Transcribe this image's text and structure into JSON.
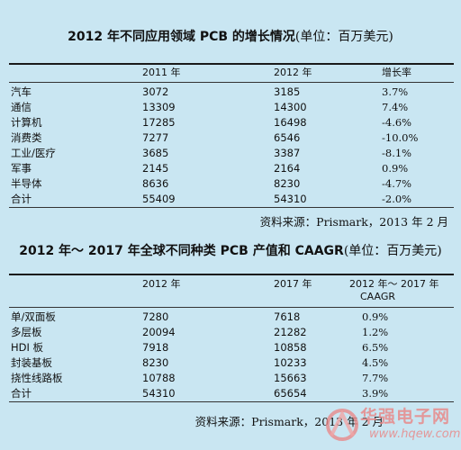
{
  "table1": {
    "title": "2012 年不同应用领域 PCB 的增长情况",
    "unit": "(单位：百万美元)",
    "headers": [
      "",
      "2011 年",
      "2012 年",
      "增长率"
    ],
    "rows": [
      [
        "汽车",
        "3072",
        "3185",
        "3.7%"
      ],
      [
        "通信",
        "13309",
        "14300",
        "7.4%"
      ],
      [
        "计算机",
        "17285",
        "16498",
        "-4.6%"
      ],
      [
        "消费类",
        "7277",
        "6546",
        "-10.0%"
      ],
      [
        "工业/医疗",
        "3685",
        "3387",
        "-8.1%"
      ],
      [
        "军事",
        "2145",
        "2164",
        "0.9%"
      ],
      [
        "半导体",
        "8636",
        "8230",
        "-4.7%"
      ],
      [
        "合计",
        "55409",
        "54310",
        "-2.0%"
      ]
    ],
    "source": "资料来源：Prismark，2013 年 2 月"
  },
  "table2": {
    "title": "2012 年～ 2017 年全球不同种类 PCB 产值和 CAAGR",
    "unit": "(单位：百万美元)",
    "headers": [
      "",
      "2012 年",
      "2017 年",
      "2012 年～ 2017 年"
    ],
    "header_sub": "CAAGR",
    "rows": [
      [
        "单/双面板",
        "7280",
        "7618",
        "0.9%"
      ],
      [
        "多层板",
        "20094",
        "21282",
        "1.2%"
      ],
      [
        "HDI 板",
        "7918",
        "10858",
        "6.5%"
      ],
      [
        "封装基板",
        "8230",
        "10233",
        "4.5%"
      ],
      [
        "挠性线路板",
        "10788",
        "15663",
        "7.7%"
      ],
      [
        "合计",
        "54310",
        "65654",
        "3.9%"
      ]
    ],
    "source": "资料来源：Prismark，2013 年 2 月"
  },
  "watermark": {
    "text": "华强电子网",
    "url": "www.hqew.com",
    "logo_color": "#e88a8a"
  }
}
